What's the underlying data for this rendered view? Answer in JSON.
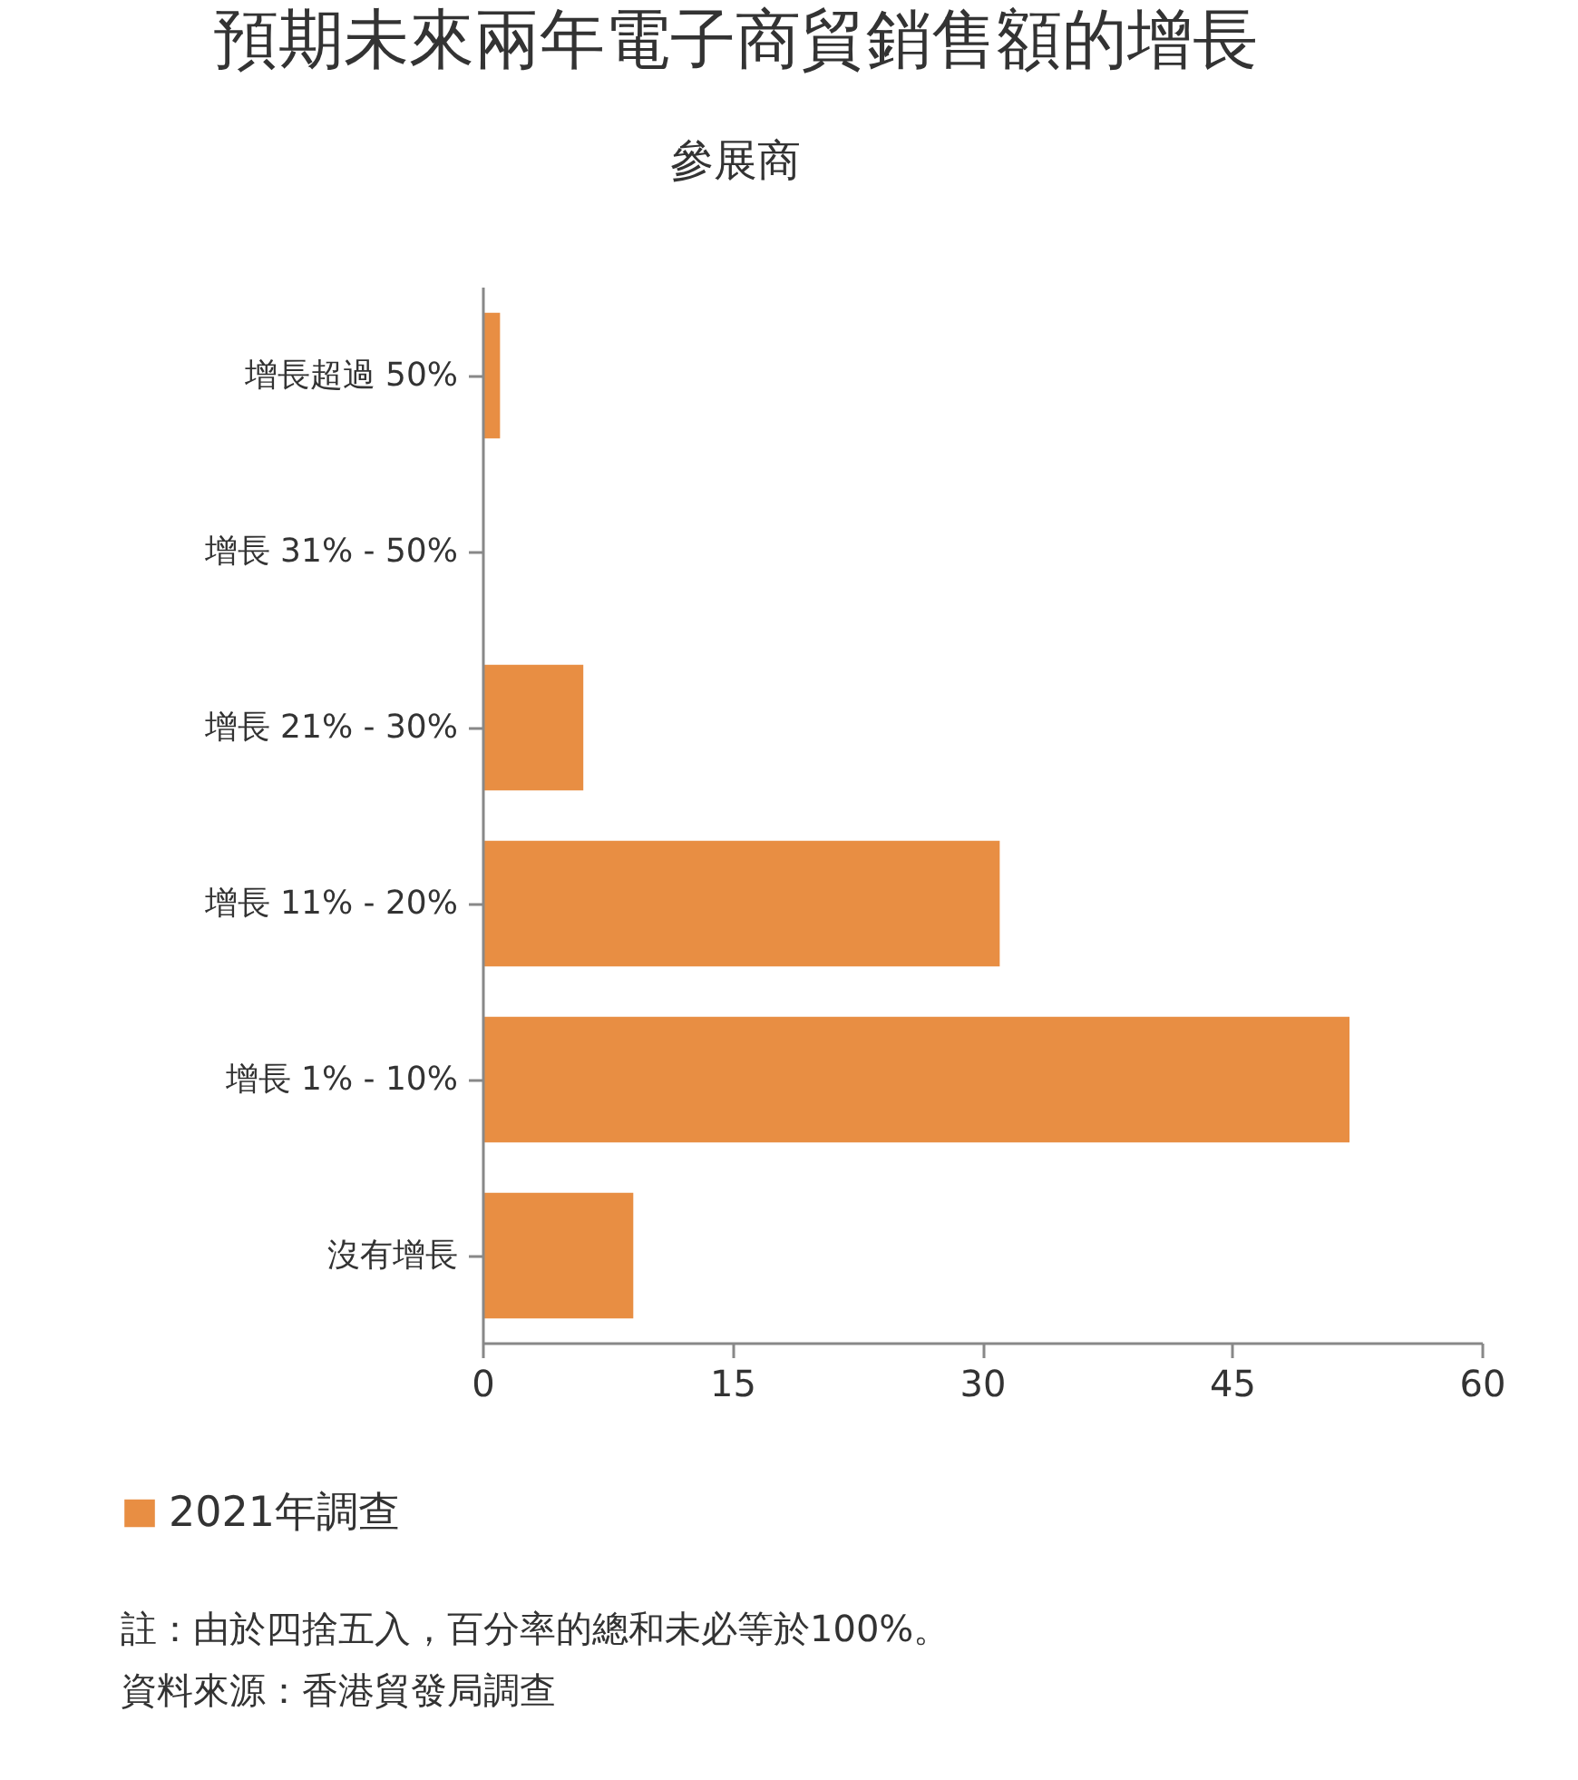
{
  "chart_data": {
    "type": "bar",
    "orientation": "horizontal",
    "title": "預期未來兩年電子商貿銷售額的增長",
    "subtitle": "參展商",
    "categories": [
      "增長超過 50%",
      "增長 31% - 50%",
      "增長 21% - 30%",
      "增長 11% - 20%",
      "增長 1% - 10%",
      "沒有增長"
    ],
    "series": [
      {
        "name": "2021年調查",
        "color": "#e88e43",
        "values": [
          1,
          0,
          6,
          31,
          52,
          9
        ]
      }
    ],
    "xlim": [
      0,
      60
    ],
    "xticks": [
      0,
      15,
      30,
      45,
      60
    ],
    "legend": "bottom left",
    "annotations": [
      "註：由於四捨五入，百分率的總和未必等於100%。",
      "資料來源：香港貿發局調查"
    ]
  }
}
